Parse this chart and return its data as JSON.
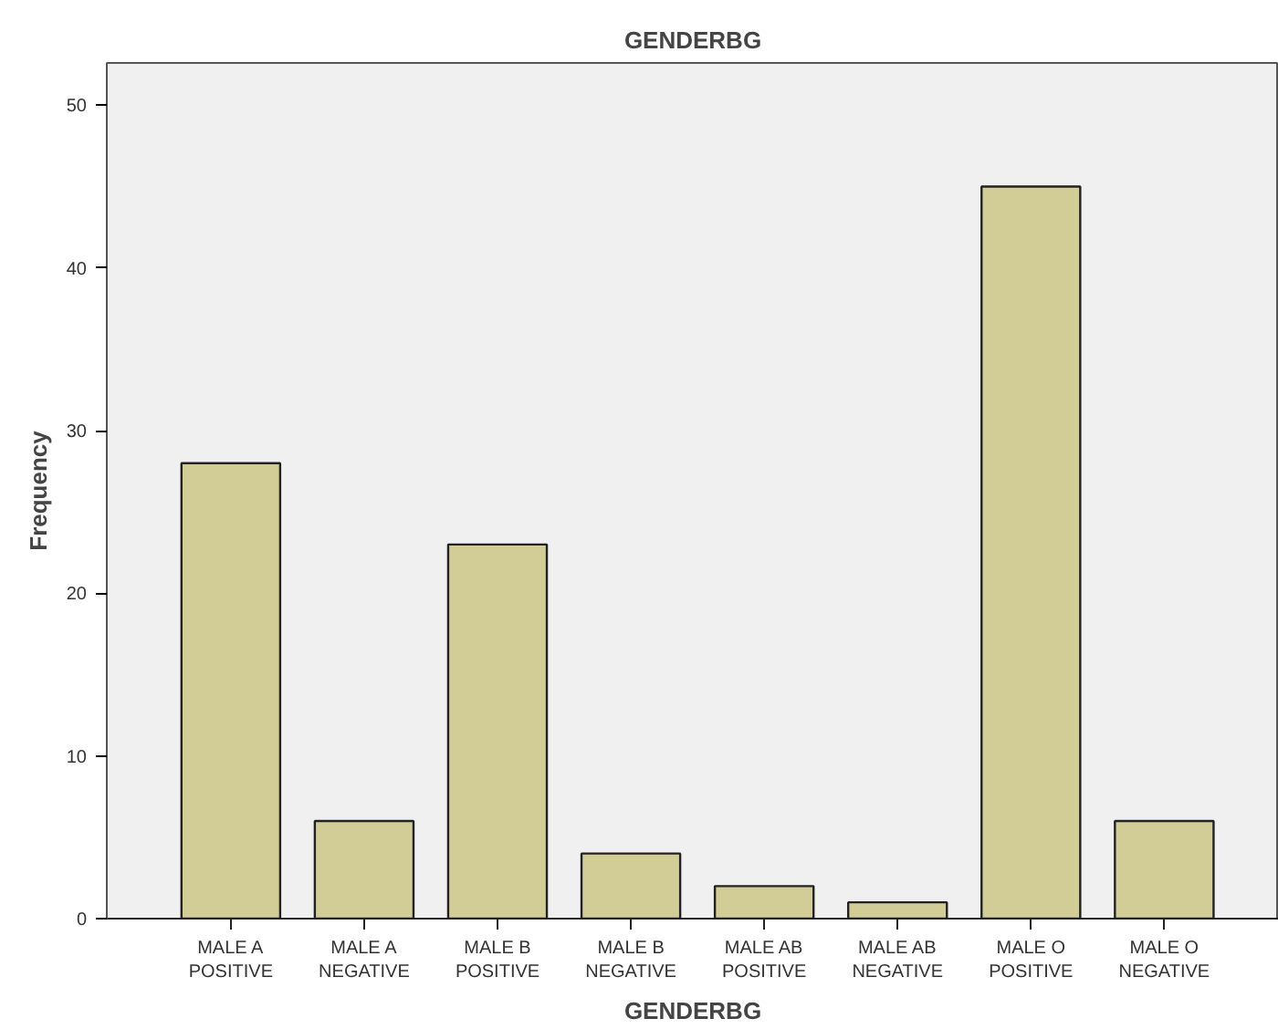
{
  "chart_data": {
    "type": "bar",
    "title": "GENDERBG",
    "xlabel": "GENDERBG",
    "ylabel": "Frequency",
    "categories": [
      "MALE A POSITIVE",
      "MALE A NEGATIVE",
      "MALE B POSITIVE",
      "MALE B NEGATIVE",
      "MALE AB POSITIVE",
      "MALE AB NEGATIVE",
      "MALE O POSITIVE",
      "MALE O NEGATIVE"
    ],
    "values": [
      28,
      6,
      23,
      4,
      2,
      1,
      45,
      6
    ],
    "color": "#d2cd96",
    "ylim": [
      0,
      52.6
    ],
    "yticks": [
      0,
      10,
      20,
      30,
      40,
      50
    ],
    "grid": false
  }
}
